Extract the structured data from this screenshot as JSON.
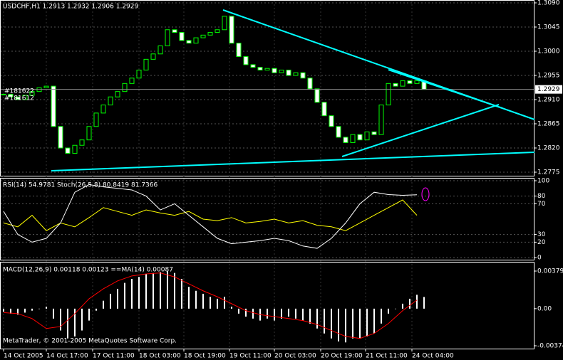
{
  "chart_data": [
    {
      "type": "candlestick",
      "title": "USDCHF,H1  1.2913 1.2932 1.2906 1.2929",
      "annotations": [
        "#181622",
        "#181612"
      ],
      "up_color": "#000000",
      "down_color": "#ffffff",
      "outline_color": "#00ff00",
      "values": [
        1.292,
        1.2915,
        1.291,
        1.2918,
        1.2925,
        1.2932,
        1.2935,
        1.286,
        1.282,
        1.281,
        1.2825,
        1.2835,
        1.286,
        1.2885,
        1.29,
        1.2915,
        1.2925,
        1.294,
        1.295,
        1.2965,
        1.2985,
        1.2995,
        1.301,
        1.304,
        1.3035,
        1.302,
        1.3015,
        1.3025,
        1.303,
        1.3035,
        1.304,
        1.3065,
        1.3015,
        1.299,
        1.2975,
        1.297,
        1.2965,
        1.2968,
        1.296,
        1.2965,
        1.2955,
        1.296,
        1.295,
        1.293,
        1.2905,
        1.288,
        1.286,
        1.284,
        1.283,
        1.2845,
        1.2835,
        1.285,
        1.2845,
        1.29,
        1.294,
        1.2935,
        1.2945,
        1.294,
        1.2945,
        1.2929
      ],
      "last": 1.2929,
      "ylim": [
        1.2775,
        1.309
      ],
      "yticks": [
        {
          "value": 1.309,
          "label": "1.3090"
        },
        {
          "value": 1.3045,
          "label": "1.3045"
        },
        {
          "value": 1.3,
          "label": "1.3000"
        },
        {
          "value": 1.2955,
          "label": "1.2955"
        },
        {
          "value": 1.291,
          "label": "1.2910"
        },
        {
          "value": 1.2865,
          "label": "1.2865"
        },
        {
          "value": 1.282,
          "label": "1.2820"
        },
        {
          "value": 1.2775,
          "label": "1.2775"
        }
      ],
      "xticks": [
        {
          "value": 0,
          "label": "14 Oct 2005"
        },
        {
          "value": 6,
          "label": "14 Oct 17:00"
        },
        {
          "value": 12.5,
          "label": "17 Oct 11:00"
        },
        {
          "value": 19,
          "label": "18 Oct 03:00"
        },
        {
          "value": 25.3,
          "label": "18 Oct 19:00"
        },
        {
          "value": 31.7,
          "label": "19 Oct 11:00"
        },
        {
          "value": 38,
          "label": "20 Oct 03:00"
        },
        {
          "value": 44.5,
          "label": "20 Oct 19:00"
        },
        {
          "value": 50.8,
          "label": "21 Oct 11:00"
        },
        {
          "value": 57.3,
          "label": "24 Oct 04:00"
        }
      ],
      "grid": true
    },
    {
      "type": "line",
      "title": "RSI(14) 54.9781  Stoch(26,5,8) 80.8419 81.7366",
      "series": [
        {
          "color": "#ffff00",
          "values": [
            45,
            40,
            55,
            35,
            45,
            40,
            52,
            65,
            60,
            55,
            62,
            58,
            55,
            60,
            50,
            48,
            52,
            45,
            47,
            50,
            45,
            48,
            42,
            40,
            35,
            45,
            55,
            65,
            75,
            55
          ]
        },
        {
          "color": "#ffffff",
          "values": [
            60,
            30,
            20,
            25,
            45,
            85,
            95,
            92,
            90,
            88,
            80,
            62,
            70,
            55,
            40,
            25,
            18,
            20,
            22,
            25,
            22,
            15,
            12,
            25,
            45,
            70,
            85,
            82,
            81,
            81.7
          ]
        }
      ],
      "ylim": [
        0,
        100
      ],
      "yticks": [
        100,
        80,
        70,
        30,
        20,
        0
      ],
      "grid": true
    },
    {
      "type": "bar",
      "title": "MACD(12,26,9) 0.00118 0.00123  ==MA(14) 0.00087",
      "color": "#ffffff",
      "values": [
        -0.0003,
        -0.0005,
        -0.0006,
        -0.0004,
        -0.0002,
        0.0,
        0.0002,
        -0.001,
        -0.0022,
        -0.003,
        -0.0028,
        -0.0022,
        -0.0012,
        -0.0002,
        0.0008,
        0.0015,
        0.002,
        0.0026,
        0.003,
        0.0032,
        0.0035,
        0.0036,
        0.0037,
        0.0038,
        0.0036,
        0.003,
        0.0022,
        0.0018,
        0.0015,
        0.0012,
        0.001,
        0.0012,
        0.0002,
        -0.0005,
        -0.0008,
        -0.001,
        -0.0012,
        -0.001,
        -0.0012,
        -0.001,
        -0.0008,
        -0.001,
        -0.0012,
        -0.0015,
        -0.002,
        -0.0025,
        -0.003,
        -0.0033,
        -0.0034,
        -0.003,
        -0.003,
        -0.0028,
        -0.0025,
        -0.0015,
        -0.0005,
        0.0,
        0.0005,
        0.001,
        0.0014,
        0.00118
      ],
      "signal": {
        "color": "#ff0000",
        "values": [
          -0.0004,
          -0.0005,
          -0.001,
          -0.002,
          -0.0018,
          -0.0005,
          0.001,
          0.002,
          0.0028,
          0.0033,
          0.0035,
          0.0036,
          0.0032,
          0.0025,
          0.0018,
          0.0012,
          0.0005,
          -0.0002,
          -0.0006,
          -0.0008,
          -0.001,
          -0.0012,
          -0.0016,
          -0.0022,
          -0.0028,
          -0.003,
          -0.0025,
          -0.0015,
          -0.0002,
          0.00087
        ]
      },
      "ylim": [
        -0.00374,
        0.00379
      ],
      "yticks": [
        {
          "value": 0.00379,
          "label": "0.00379"
        },
        {
          "value": 0,
          "label": "0.00"
        },
        {
          "value": -0.00374,
          "label": "-0.00374"
        }
      ],
      "footer": "MetaTrader, © 2001-2005 MetaQuotes Software Corp."
    }
  ]
}
